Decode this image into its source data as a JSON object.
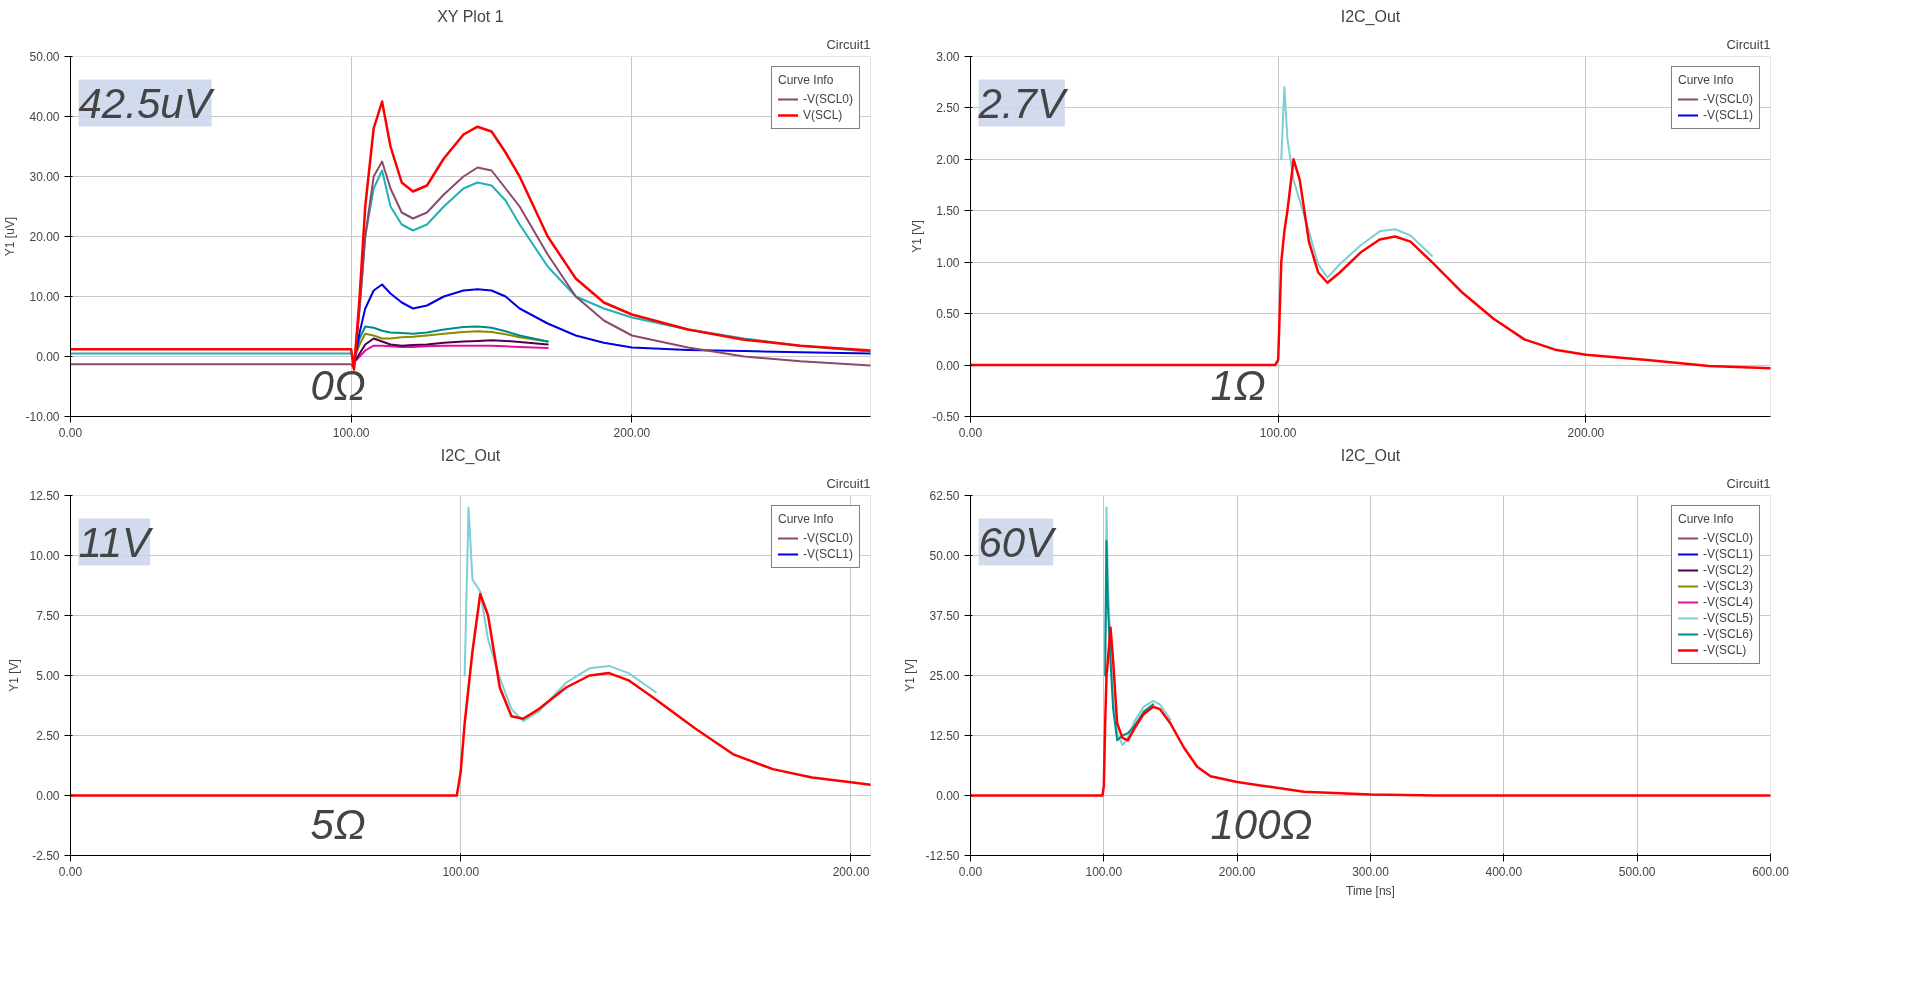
{
  "chart_data": [
    {
      "type": "line",
      "title": "XY Plot 1",
      "ylabel": "Y1 [uV]",
      "legend_title": "Curve Info",
      "legend": "top right",
      "grid": true,
      "annotations": [
        "Circuit1",
        "42.5uV",
        "0Ω"
      ],
      "xlim": [
        0,
        285
      ],
      "xticks": [
        {
          "value": 0,
          "label": "0.00"
        },
        {
          "value": 100,
          "label": "100.00"
        },
        {
          "value": 200,
          "label": "200.00"
        }
      ],
      "ylim": [
        -10,
        50
      ],
      "yticks": [
        {
          "value": -10,
          "label": "-10.00"
        },
        {
          "value": 0,
          "label": "0.00"
        },
        {
          "value": 10,
          "label": "10.00"
        },
        {
          "value": 20,
          "label": "20.00"
        },
        {
          "value": 30,
          "label": "30.00"
        },
        {
          "value": 40,
          "label": "40.00"
        },
        {
          "value": 50,
          "label": "50.00"
        }
      ],
      "x": [
        0,
        99,
        100,
        101,
        103,
        105,
        108,
        111,
        114,
        118,
        122,
        127,
        133,
        140,
        145,
        150,
        155,
        160,
        170,
        180,
        190,
        200,
        220,
        240,
        260,
        285
      ],
      "series": [
        {
          "color": "#e0109a",
          "values": [
            null,
            null,
            null,
            -1,
            0,
            1,
            1.8,
            1.8,
            1.7,
            1.6,
            1.6,
            1.7,
            1.8,
            1.8,
            1.8,
            1.8,
            1.7,
            1.6,
            1.4,
            null,
            null,
            null,
            null,
            null,
            null,
            null
          ]
        },
        {
          "color": "#4b0050",
          "values": [
            null,
            null,
            null,
            -1,
            0.5,
            2,
            3,
            2.5,
            2,
            1.8,
            1.9,
            2,
            2.3,
            2.5,
            2.6,
            2.7,
            2.6,
            2.4,
            2,
            null,
            null,
            null,
            null,
            null,
            null,
            null
          ]
        },
        {
          "color": "#8b8b00",
          "values": [
            null,
            null,
            null,
            -0.5,
            2,
            3.8,
            3.5,
            3,
            3,
            3.2,
            3.3,
            3.5,
            3.8,
            4.1,
            4.2,
            4.1,
            3.7,
            3.2,
            2.5,
            null,
            null,
            null,
            null,
            null,
            null,
            null
          ]
        },
        {
          "color": "#008b8b",
          "values": [
            null,
            null,
            null,
            -0.5,
            3,
            5,
            4.8,
            4.3,
            4,
            3.9,
            3.8,
            4,
            4.5,
            4.9,
            5,
            4.8,
            4.2,
            3.5,
            2.5,
            null,
            null,
            null,
            null,
            null,
            null,
            null
          ]
        },
        {
          "color": "#0000e0",
          "values": [
            null,
            null,
            null,
            -1,
            4,
            8,
            11,
            12,
            10.5,
            9,
            8,
            8.5,
            10,
            11,
            11.2,
            11,
            10,
            8,
            5.5,
            3.5,
            2.3,
            1.5,
            1.1,
            0.9,
            0.7,
            0.5
          ]
        },
        {
          "color": "#20b0b8",
          "values": [
            0.5,
            0.5,
            0.5,
            -1,
            8,
            20,
            28,
            31,
            25,
            22,
            21,
            22,
            25,
            28,
            29,
            28.5,
            26,
            22,
            15,
            10,
            8,
            6.5,
            4.5,
            3,
            1.8,
            0.8
          ]
        },
        {
          "name": "-V(SCL0)",
          "color": "#8b4a6b",
          "values": [
            -1.3,
            -1.3,
            -1.3,
            -2,
            8,
            20,
            30,
            32.5,
            28,
            24,
            23,
            24,
            27,
            30,
            31.5,
            31,
            28,
            25,
            17,
            10,
            6,
            3.5,
            1.5,
            0,
            -0.8,
            -1.5
          ]
        },
        {
          "name": "V(SCL)",
          "color": "#ff0000",
          "values": [
            1.2,
            1.2,
            1.2,
            -2.2,
            10,
            25,
            38,
            42.5,
            35,
            29,
            27.5,
            28.5,
            33,
            37,
            38.3,
            37.5,
            34,
            30,
            20,
            13,
            9,
            7,
            4.5,
            2.8,
            1.8,
            1
          ]
        }
      ]
    },
    {
      "type": "line",
      "title": "I2C_Out",
      "ylabel": "Y1 [V]",
      "legend_title": "Curve Info",
      "legend": "top right",
      "grid": true,
      "annotations": [
        "Circuit1",
        "2.7V",
        "1Ω"
      ],
      "xlim": [
        0,
        260
      ],
      "xticks": [
        {
          "value": 0,
          "label": "0.00"
        },
        {
          "value": 100,
          "label": "100.00"
        },
        {
          "value": 200,
          "label": "200.00"
        }
      ],
      "ylim": [
        -0.5,
        3
      ],
      "yticks": [
        {
          "value": -0.5,
          "label": "-0.50"
        },
        {
          "value": 0,
          "label": "0.00"
        },
        {
          "value": 0.5,
          "label": "0.50"
        },
        {
          "value": 1,
          "label": "1.00"
        },
        {
          "value": 1.5,
          "label": "1.50"
        },
        {
          "value": 2,
          "label": "2.00"
        },
        {
          "value": 2.5,
          "label": "2.50"
        },
        {
          "value": 3,
          "label": "3.00"
        }
      ],
      "x": [
        0,
        99,
        100,
        101,
        102,
        103,
        105,
        107,
        110,
        113,
        116,
        120,
        127,
        133,
        138,
        143,
        150,
        160,
        170,
        180,
        190,
        200,
        220,
        240,
        260
      ],
      "series": [
        {
          "name": "-V(SCL0)",
          "color": "#8b4a6b",
          "values": [
            null,
            null,
            null,
            null,
            null,
            null,
            null,
            null,
            null,
            null,
            null,
            null,
            null,
            null,
            null,
            null,
            null,
            null,
            null,
            null,
            null,
            null,
            null,
            null,
            null
          ]
        },
        {
          "name": "-V(SCL1)",
          "color": "#0000e0",
          "values": [
            null,
            null,
            null,
            null,
            null,
            null,
            null,
            null,
            null,
            null,
            null,
            null,
            null,
            null,
            null,
            null,
            null,
            null,
            null,
            null,
            null,
            null,
            null,
            null,
            null
          ]
        },
        {
          "color": "#7ccfd4",
          "values": [
            null,
            null,
            null,
            2.0,
            2.7,
            2.2,
            1.8,
            1.6,
            1.3,
            0.98,
            0.85,
            0.98,
            1.17,
            1.3,
            1.32,
            1.26,
            1.06,
            null,
            null,
            null,
            null,
            null,
            null,
            null,
            null
          ]
        },
        {
          "color": "#ff0000",
          "values": [
            0,
            0,
            0.05,
            1.0,
            1.3,
            1.5,
            2.0,
            1.8,
            1.2,
            0.9,
            0.8,
            0.9,
            1.1,
            1.22,
            1.25,
            1.2,
            1.0,
            0.7,
            0.45,
            0.25,
            0.15,
            0.1,
            0.05,
            -0.01,
            -0.03
          ]
        }
      ]
    },
    {
      "type": "line",
      "title": "I2C_Out",
      "ylabel": "Y1 [V]",
      "legend_title": "Curve Info",
      "legend": "top right",
      "grid": true,
      "annotations": [
        "Circuit1",
        "11V",
        "5Ω"
      ],
      "xlim": [
        0,
        205
      ],
      "xticks": [
        {
          "value": 0,
          "label": "0.00"
        },
        {
          "value": 100,
          "label": "100.00"
        },
        {
          "value": 200,
          "label": "200.00"
        }
      ],
      "ylim": [
        -2.5,
        12.5
      ],
      "yticks": [
        {
          "value": -2.5,
          "label": "-2.50"
        },
        {
          "value": 0,
          "label": "0.00"
        },
        {
          "value": 2.5,
          "label": "2.50"
        },
        {
          "value": 5,
          "label": "5.00"
        },
        {
          "value": 7.5,
          "label": "7.50"
        },
        {
          "value": 10,
          "label": "10.00"
        },
        {
          "value": 12.5,
          "label": "12.50"
        }
      ],
      "x": [
        0,
        99,
        100,
        101,
        102,
        103,
        105,
        107,
        110,
        113,
        116,
        120,
        127,
        133,
        138,
        143,
        150,
        160,
        170,
        180,
        190,
        200,
        205
      ],
      "series": [
        {
          "name": "-V(SCL0)",
          "color": "#8b4a6b",
          "values": [
            null,
            null,
            null,
            null,
            null,
            null,
            null,
            null,
            null,
            null,
            null,
            null,
            null,
            null,
            null,
            null,
            null,
            null,
            null,
            null,
            null,
            null,
            null
          ]
        },
        {
          "name": "-V(SCL1)",
          "color": "#0000e0",
          "values": [
            null,
            null,
            null,
            null,
            null,
            null,
            null,
            null,
            null,
            null,
            null,
            null,
            null,
            null,
            null,
            null,
            null,
            null,
            null,
            null,
            null,
            null,
            null
          ]
        },
        {
          "color": "#7ccfd4",
          "values": [
            null,
            null,
            null,
            5,
            12.0,
            9,
            8.5,
            6.5,
            4.9,
            3.6,
            3.1,
            3.5,
            4.7,
            5.3,
            5.4,
            5.1,
            4.3,
            null,
            null,
            null,
            null,
            null,
            null
          ]
        },
        {
          "color": "#ff0000",
          "values": [
            0,
            0,
            1.0,
            3.0,
            4.5,
            6,
            8.4,
            7.5,
            4.5,
            3.3,
            3.2,
            3.6,
            4.5,
            5.0,
            5.1,
            4.8,
            4.0,
            2.8,
            1.7,
            1.1,
            0.75,
            0.55,
            0.45
          ]
        }
      ]
    },
    {
      "type": "line",
      "title": "I2C_Out",
      "xlabel": "Time [ns]",
      "ylabel": "Y1 [V]",
      "legend_title": "Curve Info",
      "legend": "top right",
      "grid": true,
      "annotations": [
        "Circuit1",
        "60V",
        "100Ω"
      ],
      "xlim": [
        0,
        600
      ],
      "xticks": [
        {
          "value": 0,
          "label": "0.00"
        },
        {
          "value": 100,
          "label": "100.00"
        },
        {
          "value": 200,
          "label": "200.00"
        },
        {
          "value": 300,
          "label": "300.00"
        },
        {
          "value": 400,
          "label": "400.00"
        },
        {
          "value": 500,
          "label": "500.00"
        },
        {
          "value": 600,
          "label": "600.00"
        }
      ],
      "ylim": [
        -12.5,
        62.5
      ],
      "yticks": [
        {
          "value": -12.5,
          "label": "-12.50"
        },
        {
          "value": 0,
          "label": "0.00"
        },
        {
          "value": 12.5,
          "label": "12.50"
        },
        {
          "value": 25,
          "label": "25.00"
        },
        {
          "value": 37.5,
          "label": "37.50"
        },
        {
          "value": 50,
          "label": "50.00"
        },
        {
          "value": 62.5,
          "label": "62.50"
        }
      ],
      "x": [
        0,
        99,
        100,
        101,
        102,
        103,
        105,
        107,
        110,
        114,
        118,
        123,
        130,
        137,
        142,
        150,
        160,
        170,
        180,
        200,
        220,
        250,
        300,
        350,
        600
      ],
      "series": [
        {
          "name": "-V(SCL0)",
          "color": "#8b4a6b",
          "values": [
            null,
            null,
            null,
            null,
            null,
            null,
            null,
            null,
            null,
            null,
            null,
            null,
            null,
            null,
            null,
            null,
            null,
            null,
            null,
            null,
            null,
            null,
            null,
            null,
            null
          ]
        },
        {
          "name": "-V(SCL1)",
          "color": "#0000e0",
          "values": [
            null,
            null,
            null,
            null,
            null,
            null,
            null,
            null,
            null,
            null,
            null,
            null,
            null,
            null,
            null,
            null,
            null,
            null,
            null,
            null,
            null,
            null,
            null,
            null,
            null
          ]
        },
        {
          "name": "-V(SCL2)",
          "color": "#4b0050",
          "values": [
            null,
            null,
            null,
            null,
            null,
            null,
            null,
            null,
            null,
            null,
            null,
            null,
            null,
            null,
            null,
            null,
            null,
            null,
            null,
            null,
            null,
            null,
            null,
            null,
            null
          ]
        },
        {
          "name": "-V(SCL3)",
          "color": "#8b8b00",
          "values": [
            null,
            null,
            null,
            null,
            null,
            null,
            null,
            null,
            null,
            null,
            null,
            null,
            null,
            null,
            null,
            null,
            null,
            null,
            null,
            null,
            null,
            null,
            null,
            null,
            null
          ]
        },
        {
          "name": "-V(SCL4)",
          "color": "#e0109a",
          "values": [
            null,
            null,
            null,
            null,
            null,
            null,
            null,
            null,
            null,
            null,
            null,
            null,
            null,
            null,
            null,
            null,
            null,
            null,
            null,
            null,
            null,
            null,
            null,
            null,
            null
          ]
        },
        {
          "name": "-V(SCL5)",
          "color": "#7ccfd4",
          "values": [
            null,
            null,
            null,
            30,
            60,
            45,
            30,
            20,
            13,
            10.5,
            12,
            15.5,
            18.5,
            19.7,
            19,
            15.8,
            null,
            null,
            null,
            null,
            null,
            null,
            null,
            null,
            null
          ]
        },
        {
          "name": "-V(SCL6)",
          "color": "#008b8b",
          "values": [
            null,
            null,
            null,
            25,
            53,
            40,
            28,
            18,
            11.5,
            12.5,
            13,
            14.5,
            17.5,
            19,
            null,
            null,
            null,
            null,
            null,
            null,
            null,
            null,
            null,
            null,
            null
          ]
        },
        {
          "name": "-V(SCL)",
          "color": "#ff0000",
          "values": [
            0,
            0,
            2,
            15,
            25,
            28,
            35,
            28,
            15,
            12,
            11.5,
            14,
            17,
            18.5,
            18,
            15,
            10,
            6,
            4,
            2.8,
            2,
            0.8,
            0.2,
            0,
            0
          ]
        }
      ]
    }
  ]
}
